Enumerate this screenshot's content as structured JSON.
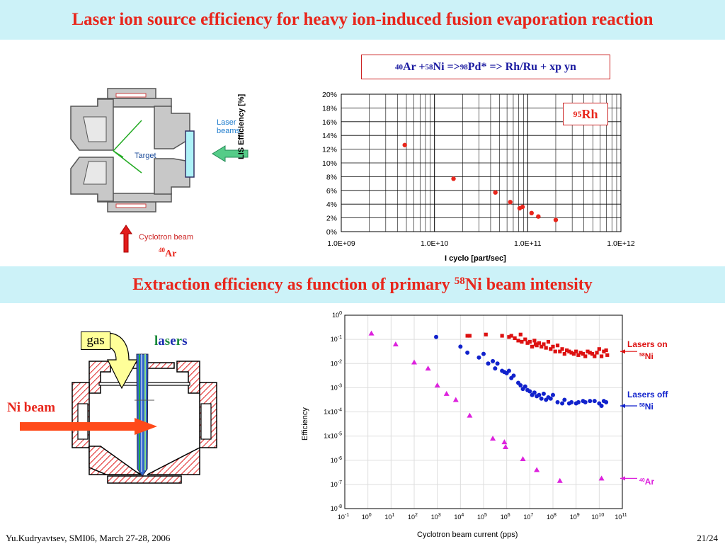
{
  "header": {
    "title": "Laser ion source efficiency for heavy ion-induced fusion evaporation reaction"
  },
  "section2": {
    "title_before": "Extraction efficiency as function of primary ",
    "title_sup": "58",
    "title_after": "Ni beam intensity"
  },
  "reaction": {
    "sup1": "40",
    "t1": "Ar + ",
    "sup2": "58",
    "t2": "Ni => ",
    "sup3": "98",
    "t3": "Pd* => Rh/Ru + xp yn"
  },
  "rh_label": {
    "sup": "95",
    "text": "Rh"
  },
  "left_diagram_top": {
    "laser_beams": [
      "Laser",
      "beams"
    ],
    "target": "Target",
    "cyclotron_beam": "Cyclotron beam",
    "ar_sup": "40",
    "ar_text": "Ar"
  },
  "left_diagram_bottom": {
    "gas": "gas",
    "lasers_letters": [
      "l",
      "a",
      "s",
      "e",
      "r",
      "s"
    ],
    "ni_beam": "Ni beam"
  },
  "footer": {
    "left": "Yu.Kudryavtsev, SMI06, March 27-28, 2006",
    "right": "21/24"
  },
  "chart_data": [
    {
      "type": "scatter",
      "title": "",
      "xlabel": "I cyclo [part/sec]",
      "ylabel": "LIS Efficiency [%]",
      "x_scale": "log",
      "xlim": [
        1000000000.0,
        1000000000000.0
      ],
      "ylim": [
        0,
        20
      ],
      "x_tick_labels": [
        "1.0E+09",
        "1.0E+10",
        "1.0E+11",
        "1.0E+12"
      ],
      "y_tick_labels": [
        "0%",
        "2%",
        "4%",
        "6%",
        "8%",
        "10%",
        "12%",
        "14%",
        "16%",
        "18%",
        "20%"
      ],
      "grid": true,
      "series": [
        {
          "name": "95Rh",
          "color": "#e8261c",
          "x": [
            4800000000.0,
            16000000000.0,
            45000000000.0,
            65000000000.0,
            82000000000.0,
            88000000000.0,
            110000000000.0,
            130000000000.0,
            200000000000.0
          ],
          "y": [
            12.6,
            7.7,
            5.7,
            4.3,
            3.4,
            3.6,
            2.7,
            2.2,
            1.7
          ]
        }
      ]
    },
    {
      "type": "scatter",
      "title": "",
      "xlabel": "Cyclotron beam current (pps)",
      "ylabel": "Efficiency",
      "x_scale": "log",
      "y_scale": "log",
      "xlim_exp": [
        -1,
        11
      ],
      "ylim_exp": [
        -8,
        0
      ],
      "x_tick_labels": [
        "10-1",
        "100",
        "101",
        "102",
        "103",
        "104",
        "105",
        "106",
        "107",
        "108",
        "109",
        "1010",
        "1011"
      ],
      "y_tick_labels": [
        "10-8",
        "10-7",
        "10-6",
        "1x10-5",
        "1x10-4",
        "10-3",
        "10-2",
        "10-1",
        "100"
      ],
      "grid": true,
      "series": [
        {
          "name": "Lasers on 58Ni",
          "legend_lines": [
            "Lasers on",
            "58Ni"
          ],
          "color": "#dd1111",
          "marker": "square",
          "log10_x": [
            4.3,
            4.4,
            5.1,
            5.8,
            6.1,
            6.2,
            6.35,
            6.5,
            6.6,
            6.65,
            6.8,
            6.9,
            7.0,
            7.1,
            7.2,
            7.25,
            7.3,
            7.4,
            7.5,
            7.6,
            7.7,
            7.8,
            7.9,
            8.0,
            8.1,
            8.2,
            8.3,
            8.4,
            8.5,
            8.6,
            8.7,
            8.8,
            8.9,
            9.0,
            9.1,
            9.2,
            9.3,
            9.4,
            9.5,
            9.6,
            9.7,
            9.8,
            9.9,
            10.0,
            10.1,
            10.2,
            10.3,
            10.35
          ],
          "log10_y": [
            -0.85,
            -0.85,
            -0.8,
            -0.85,
            -0.9,
            -0.85,
            -0.95,
            -1.05,
            -0.8,
            -1.1,
            -1.0,
            -1.15,
            -1.1,
            -1.3,
            -1.05,
            -1.2,
            -1.25,
            -1.15,
            -1.3,
            -1.2,
            -1.35,
            -1.1,
            -1.4,
            -1.3,
            -1.5,
            -1.25,
            -1.5,
            -1.4,
            -1.6,
            -1.45,
            -1.5,
            -1.55,
            -1.6,
            -1.5,
            -1.65,
            -1.55,
            -1.6,
            -1.7,
            -1.5,
            -1.55,
            -1.6,
            -1.7,
            -1.55,
            -1.4,
            -1.7,
            -1.5,
            -1.45,
            -1.65
          ]
        },
        {
          "name": "Lasers off 58Ni",
          "legend_lines": [
            "Lasers off",
            "58Ni"
          ],
          "color": "#1122cc",
          "marker": "circle",
          "log10_x": [
            2.95,
            4.0,
            4.3,
            4.8,
            5.0,
            5.2,
            5.4,
            5.5,
            5.6,
            5.8,
            5.9,
            6.0,
            6.1,
            6.2,
            6.3,
            6.5,
            6.6,
            6.7,
            6.8,
            6.9,
            7.0,
            7.1,
            7.2,
            7.3,
            7.4,
            7.5,
            7.6,
            7.7,
            7.8,
            7.9,
            8.0,
            8.2,
            8.4,
            8.5,
            8.7,
            8.8,
            9.0,
            9.1,
            9.3,
            9.4,
            9.6,
            9.8,
            10.0,
            10.1,
            10.2,
            10.3
          ],
          "log10_y": [
            -0.9,
            -1.3,
            -1.55,
            -1.75,
            -1.6,
            -2.0,
            -1.9,
            -2.2,
            -2.0,
            -2.3,
            -2.35,
            -2.4,
            -2.3,
            -2.6,
            -2.5,
            -2.8,
            -2.9,
            -3.05,
            -2.95,
            -3.1,
            -3.15,
            -3.3,
            -3.2,
            -3.35,
            -3.3,
            -3.45,
            -3.25,
            -3.5,
            -3.4,
            -3.45,
            -3.3,
            -3.6,
            -3.65,
            -3.5,
            -3.65,
            -3.6,
            -3.65,
            -3.6,
            -3.55,
            -3.6,
            -3.55,
            -3.55,
            -3.65,
            -3.75,
            -3.55,
            -3.6
          ]
        },
        {
          "name": "40Ar",
          "legend_lines": [
            "40Ar"
          ],
          "color": "#dd22dd",
          "marker": "triangle",
          "log10_x": [
            0.15,
            1.2,
            2.0,
            2.6,
            3.0,
            3.4,
            3.8,
            4.4,
            5.4,
            5.9,
            5.95,
            6.7,
            7.3,
            8.3,
            10.1
          ],
          "log10_y": [
            -0.75,
            -1.2,
            -1.95,
            -2.2,
            -2.9,
            -3.25,
            -3.5,
            -4.15,
            -5.1,
            -5.25,
            -5.45,
            -5.95,
            -6.4,
            -6.85,
            -6.75
          ]
        }
      ]
    }
  ]
}
